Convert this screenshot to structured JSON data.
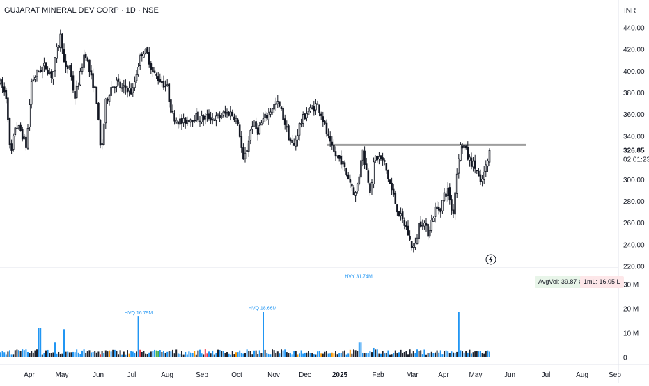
{
  "header": {
    "title": "GUJARAT MINERAL DEV CORP · 1D · NSE",
    "currency": "INR"
  },
  "price_axis": {
    "ticks": [
      "440.00",
      "420.00",
      "400.00",
      "380.00",
      "360.00",
      "340.00",
      "300.00",
      "280.00",
      "260.00",
      "240.00",
      "220.00"
    ],
    "last_price": "326.85",
    "countdown": "02:01:23"
  },
  "volume_axis": {
    "ticks": [
      "30 M",
      "20 M",
      "10 M",
      "0"
    ]
  },
  "time_axis": {
    "labels": [
      "Apr",
      "May",
      "Jun",
      "Jul",
      "Aug",
      "Sep",
      "Oct",
      "Nov",
      "Dec",
      "2025",
      "Feb",
      "Mar",
      "Apr",
      "May",
      "Jun",
      "Jul",
      "Aug",
      "Sep"
    ]
  },
  "badges": {
    "avg_vol": "AvgVol: 39.87 Cr",
    "one_ml": "1mL: 16.05 L"
  },
  "volume_labels": [
    "HVQ 16.79M",
    "HVQ 18.66M",
    "HVY 31.74M"
  ],
  "colors": {
    "up": "#2962ff",
    "down": "#131722",
    "volume_up": "#2196f3",
    "volume_down": "#1e222d",
    "volume_red": "#f23645",
    "volume_orange": "#ff9800",
    "volume_green": "#4caf50",
    "resistance": "#9e9e9e",
    "label_text": "#2196f3"
  },
  "chart_data": {
    "type": "candlestick",
    "title": "GUJARAT MINERAL DEV CORP · 1D · NSE",
    "y_range": [
      220,
      450
    ],
    "volume_range_millions": [
      0,
      34
    ],
    "resistance_level": 332,
    "last_price": 326.85,
    "months": [
      "Apr",
      "May",
      "Jun",
      "Jul",
      "Aug",
      "Sep",
      "Oct",
      "Nov",
      "Dec",
      "Jan",
      "Feb",
      "Mar",
      "Apr",
      "May"
    ],
    "monthly_close_path": [
      {
        "month": "Apr 2024",
        "close": 360
      },
      {
        "month": "May 2024",
        "close": 405
      },
      {
        "month": "Jun 2024",
        "close": 378
      },
      {
        "month": "Jul 2024",
        "close": 410
      },
      {
        "month": "Aug 2024",
        "close": 360
      },
      {
        "month": "Sep 2024",
        "close": 358
      },
      {
        "month": "Oct 2024",
        "close": 325
      },
      {
        "month": "Nov 2024",
        "close": 350
      },
      {
        "month": "Dec 2024",
        "close": 362
      },
      {
        "month": "Jan 2025",
        "close": 310
      },
      {
        "month": "Feb 2025",
        "close": 262
      },
      {
        "month": "Mar 2025",
        "close": 245
      },
      {
        "month": "Apr 2025",
        "close": 290
      },
      {
        "month": "May 2025",
        "close": 326.85
      }
    ],
    "volume_spikes": [
      {
        "label": "HVQ 16.79M",
        "value_millions": 16.79
      },
      {
        "label": "HVQ 18.66M",
        "value_millions": 18.66
      },
      {
        "label": "HVY 31.74M",
        "value_millions": 31.74
      }
    ]
  }
}
